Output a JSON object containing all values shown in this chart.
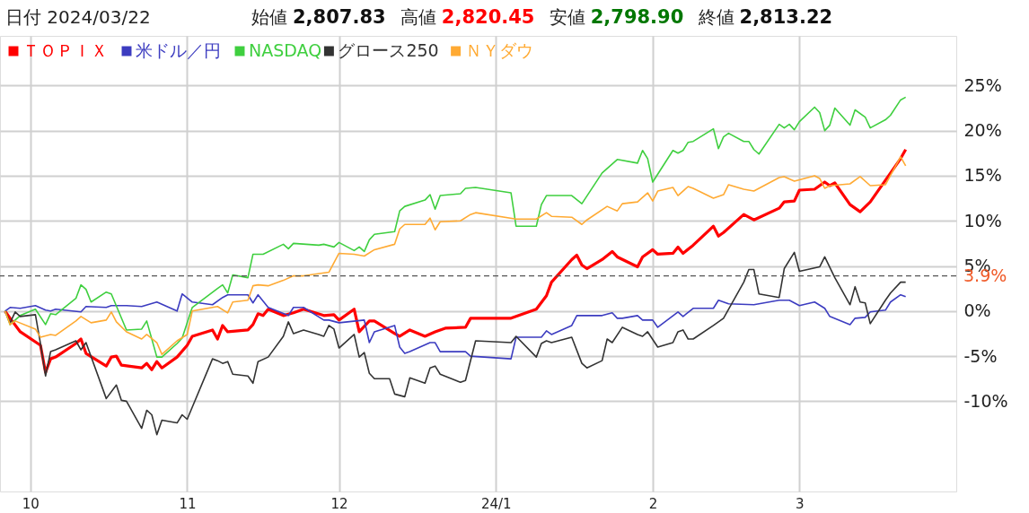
{
  "chart_data": {
    "type": "line",
    "title": "日付 2024/03/22",
    "annotations": [
      "始値 2,807.83",
      "高値 2,820.45",
      "安値 2,798.90",
      "終値 2,813.22"
    ],
    "xlim": [
      "2023-09-25",
      "2024-04-01"
    ],
    "xticks": [
      {
        "value": "2023-10-01",
        "label": "10"
      },
      {
        "value": "2023-11-01",
        "label": "11"
      },
      {
        "value": "2023-12-01",
        "label": "12"
      },
      {
        "value": "2024-01-01",
        "label": "24/1"
      },
      {
        "value": "2024-02-01",
        "label": "2"
      },
      {
        "value": "2024-03-01",
        "label": "3"
      }
    ],
    "ylim": [
      -20,
      30.5
    ],
    "yticks": [
      {
        "value": -10,
        "label": "-10%"
      },
      {
        "value": -5,
        "label": "-5%"
      },
      {
        "value": 0,
        "label": "0%"
      },
      {
        "value": 5,
        "label": "5%"
      },
      {
        "value": 10,
        "label": "10%"
      },
      {
        "value": 15,
        "label": "15%"
      },
      {
        "value": 20,
        "label": "20%"
      },
      {
        "value": 25,
        "label": "25%"
      }
    ],
    "grid": true,
    "legend": "top left",
    "marker": "none",
    "line_style": "solid",
    "ref_lines": [
      {
        "axis": "y",
        "value": 3.9,
        "label": "3.9%",
        "line_style": "dashed"
      }
    ],
    "series": [
      {
        "name": "ＴＯＰＩＸ",
        "color": "#ff0000",
        "x": [
          "2023-09-26",
          "2023-09-27",
          "2023-09-29",
          "2023-10-03",
          "2023-10-04",
          "2023-10-05",
          "2023-10-06",
          "2023-10-10",
          "2023-10-11",
          "2023-10-12",
          "2023-10-16",
          "2023-10-17",
          "2023-10-18",
          "2023-10-19",
          "2023-10-23",
          "2023-10-24",
          "2023-10-25",
          "2023-10-26",
          "2023-10-27",
          "2023-10-30",
          "2023-11-01",
          "2023-11-02",
          "2023-11-06",
          "2023-11-07",
          "2023-11-08",
          "2023-11-09",
          "2023-11-13",
          "2023-11-14",
          "2023-11-15",
          "2023-11-16",
          "2023-11-17",
          "2023-11-20",
          "2023-11-22",
          "2023-11-24",
          "2023-11-28",
          "2023-11-30",
          "2023-12-01",
          "2023-12-04",
          "2023-12-05",
          "2023-12-07",
          "2023-12-08",
          "2023-12-12",
          "2023-12-13",
          "2023-12-15",
          "2023-12-18",
          "2023-12-20",
          "2023-12-22",
          "2023-12-26",
          "2023-12-27",
          "2024-01-04",
          "2024-01-09",
          "2024-01-11",
          "2024-01-12",
          "2024-01-16",
          "2024-01-17",
          "2024-01-18",
          "2024-01-19",
          "2024-01-22",
          "2024-01-24",
          "2024-01-25",
          "2024-01-29",
          "2024-01-30",
          "2024-02-01",
          "2024-02-02",
          "2024-02-05",
          "2024-02-06",
          "2024-02-07",
          "2024-02-09",
          "2024-02-13",
          "2024-02-14",
          "2024-02-15",
          "2024-02-19",
          "2024-02-21",
          "2024-02-26",
          "2024-02-27",
          "2024-02-29",
          "2024-03-01",
          "2024-03-04",
          "2024-03-06",
          "2024-03-07",
          "2024-03-08",
          "2024-03-11",
          "2024-03-13",
          "2024-03-15",
          "2024-03-21",
          "2024-03-22"
        ],
        "values": [
          0,
          -0.8,
          -2.3,
          -3.8,
          -6.8,
          -5.3,
          -5.1,
          -3.6,
          -3.1,
          -4.7,
          -6.1,
          -5.1,
          -5.0,
          -6.0,
          -6.3,
          -5.8,
          -6.5,
          -5.6,
          -6.3,
          -5.1,
          -3.8,
          -2.8,
          -2.1,
          -3.1,
          -1.6,
          -2.3,
          -2.1,
          -1.5,
          -0.3,
          -0.5,
          0.2,
          -0.5,
          -0.2,
          0.2,
          -0.5,
          -0.4,
          -1.0,
          0.2,
          -2.3,
          -1.1,
          -1.1,
          -2.5,
          -2.8,
          -2.1,
          -2.8,
          -2.3,
          -1.9,
          -1.8,
          -0.8,
          -0.8,
          0.2,
          1.7,
          3.2,
          5.7,
          6.2,
          5.1,
          4.7,
          5.7,
          6.6,
          6.0,
          4.9,
          6.0,
          6.8,
          6.3,
          6.4,
          7.1,
          6.4,
          7.3,
          9.4,
          8.3,
          8.7,
          10.7,
          10.1,
          11.4,
          12.1,
          12.2,
          13.4,
          13.5,
          14.3,
          13.9,
          14.2,
          11.8,
          11.0,
          12.1,
          16.9,
          17.9
        ]
      },
      {
        "name": "米ドル／円",
        "color": "#3c3cc0",
        "x": [
          "2023-09-26",
          "2023-09-27",
          "2023-09-29",
          "2023-10-02",
          "2023-10-04",
          "2023-10-05",
          "2023-10-06",
          "2023-10-11",
          "2023-10-12",
          "2023-10-16",
          "2023-10-17",
          "2023-10-20",
          "2023-10-23",
          "2023-10-26",
          "2023-10-30",
          "2023-10-31",
          "2023-11-02",
          "2023-11-06",
          "2023-11-08",
          "2023-11-09",
          "2023-11-13",
          "2023-11-14",
          "2023-11-15",
          "2023-11-17",
          "2023-11-21",
          "2023-11-22",
          "2023-11-24",
          "2023-11-28",
          "2023-11-29",
          "2023-12-01",
          "2023-12-06",
          "2023-12-07",
          "2023-12-08",
          "2023-12-12",
          "2023-12-13",
          "2023-12-14",
          "2023-12-15",
          "2023-12-19",
          "2023-12-20",
          "2023-12-21",
          "2023-12-26",
          "2023-12-27",
          "2024-01-04",
          "2024-01-05",
          "2024-01-10",
          "2024-01-11",
          "2024-01-12",
          "2024-01-16",
          "2024-01-17",
          "2024-01-22",
          "2024-01-24",
          "2024-01-25",
          "2024-01-26",
          "2024-01-29",
          "2024-01-30",
          "2024-02-01",
          "2024-02-02",
          "2024-02-06",
          "2024-02-07",
          "2024-02-09",
          "2024-02-13",
          "2024-02-14",
          "2024-02-16",
          "2024-02-21",
          "2024-02-26",
          "2024-02-28",
          "2024-03-01",
          "2024-03-04",
          "2024-03-06",
          "2024-03-07",
          "2024-03-11",
          "2024-03-12",
          "2024-03-14",
          "2024-03-15",
          "2024-03-18",
          "2024-03-19",
          "2024-03-21",
          "2024-03-22"
        ],
        "values": [
          0,
          0.4,
          0.3,
          0.6,
          0.1,
          0,
          0.2,
          -0.1,
          0.5,
          0.4,
          0.6,
          0.6,
          0.5,
          1.0,
          0,
          1.9,
          1.0,
          0.7,
          1.5,
          1.8,
          1.8,
          0.9,
          1.8,
          0.4,
          -0.5,
          0.4,
          0.4,
          -1.0,
          -1.0,
          -1.3,
          -1.0,
          -3.5,
          -2.3,
          -1.6,
          -4.0,
          -4.7,
          -4.5,
          -3.5,
          -3.5,
          -4.5,
          -4.5,
          -5.0,
          -5.3,
          -2.9,
          -2.9,
          -2.2,
          -2.6,
          -1.6,
          -0.5,
          -0.5,
          -0.2,
          -0.8,
          -0.8,
          -0.5,
          -1.0,
          -1.0,
          -1.8,
          -0.1,
          -0.6,
          0.3,
          0.3,
          1.2,
          0.8,
          0.7,
          1.2,
          1.2,
          0.6,
          1.0,
          0.3,
          -0.6,
          -1.5,
          -0.8,
          -0.7,
          -0.1,
          0.1,
          1.0,
          1.8,
          1.6
        ]
      },
      {
        "name": "NASDAQ",
        "color": "#3fcf3f",
        "x": [
          "2023-09-26",
          "2023-09-27",
          "2023-09-29",
          "2023-10-02",
          "2023-10-04",
          "2023-10-05",
          "2023-10-06",
          "2023-10-10",
          "2023-10-11",
          "2023-10-12",
          "2023-10-13",
          "2023-10-16",
          "2023-10-17",
          "2023-10-20",
          "2023-10-23",
          "2023-10-24",
          "2023-10-26",
          "2023-10-27",
          "2023-10-30",
          "2023-10-31",
          "2023-11-02",
          "2023-11-07",
          "2023-11-08",
          "2023-11-09",
          "2023-11-10",
          "2023-11-13",
          "2023-11-14",
          "2023-11-16",
          "2023-11-20",
          "2023-11-21",
          "2023-11-22",
          "2023-11-27",
          "2023-11-28",
          "2023-11-30",
          "2023-12-01",
          "2023-12-04",
          "2023-12-05",
          "2023-12-06",
          "2023-12-07",
          "2023-12-08",
          "2023-12-12",
          "2023-12-13",
          "2023-12-14",
          "2023-12-18",
          "2023-12-19",
          "2023-12-20",
          "2023-12-21",
          "2023-12-25",
          "2023-12-26",
          "2023-12-28",
          "2024-01-04",
          "2024-01-05",
          "2024-01-09",
          "2024-01-10",
          "2024-01-11",
          "2024-01-16",
          "2024-01-18",
          "2024-01-22",
          "2024-01-24",
          "2024-01-25",
          "2024-01-29",
          "2024-01-30",
          "2024-01-31",
          "2024-02-01",
          "2024-02-05",
          "2024-02-06",
          "2024-02-07",
          "2024-02-08",
          "2024-02-09",
          "2024-02-13",
          "2024-02-14",
          "2024-02-15",
          "2024-02-16",
          "2024-02-19",
          "2024-02-20",
          "2024-02-21",
          "2024-02-22",
          "2024-02-26",
          "2024-02-27",
          "2024-02-28",
          "2024-02-29",
          "2024-03-01",
          "2024-03-04",
          "2024-03-05",
          "2024-03-06",
          "2024-03-07",
          "2024-03-08",
          "2024-03-11",
          "2024-03-12",
          "2024-03-14",
          "2024-03-15",
          "2024-03-18",
          "2024-03-19",
          "2024-03-21",
          "2024-03-22"
        ],
        "values": [
          0,
          -1.5,
          -0.5,
          0.2,
          -1.5,
          -0.3,
          -0.4,
          1.4,
          2.9,
          2.4,
          1.0,
          2.1,
          1.9,
          -2.1,
          -2.0,
          -1.1,
          -5.1,
          -5.1,
          -3.6,
          -3.0,
          0.4,
          2.5,
          2.9,
          2.0,
          4.0,
          3.7,
          6.3,
          6.3,
          7.4,
          6.9,
          7.5,
          7.3,
          7.4,
          7.1,
          7.6,
          6.7,
          7.1,
          6.6,
          7.9,
          8.5,
          8.8,
          11.1,
          11.6,
          12.3,
          12.9,
          11.3,
          12.8,
          13.0,
          13.6,
          13.7,
          13.1,
          9.4,
          9.4,
          11.8,
          12.8,
          12.8,
          11.9,
          15.3,
          16.3,
          16.8,
          16.4,
          17.8,
          16.9,
          14.3,
          17.8,
          17.5,
          17.8,
          18.7,
          18.8,
          20.2,
          18.0,
          19.3,
          19.7,
          18.8,
          18.8,
          17.9,
          17.4,
          20.7,
          20.3,
          20.7,
          20.1,
          21.0,
          22.6,
          22.0,
          20.0,
          20.6,
          22.5,
          20.6,
          22.3,
          21.5,
          20.3,
          21.2,
          21.7,
          23.4,
          23.7
        ]
      },
      {
        "name": "グロース250",
        "color": "#333333",
        "x": [
          "2023-09-26",
          "2023-09-27",
          "2023-09-28",
          "2023-09-29",
          "2023-10-02",
          "2023-10-03",
          "2023-10-04",
          "2023-10-05",
          "2023-10-06",
          "2023-10-10",
          "2023-10-11",
          "2023-10-12",
          "2023-10-16",
          "2023-10-18",
          "2023-10-19",
          "2023-10-20",
          "2023-10-23",
          "2023-10-24",
          "2023-10-25",
          "2023-10-26",
          "2023-10-27",
          "2023-10-30",
          "2023-10-31",
          "2023-11-01",
          "2023-11-06",
          "2023-11-07",
          "2023-11-08",
          "2023-11-09",
          "2023-11-10",
          "2023-11-13",
          "2023-11-14",
          "2023-11-15",
          "2023-11-17",
          "2023-11-20",
          "2023-11-21",
          "2023-11-22",
          "2023-11-24",
          "2023-11-27",
          "2023-11-28",
          "2023-11-29",
          "2023-11-30",
          "2023-12-01",
          "2023-12-04",
          "2023-12-05",
          "2023-12-06",
          "2023-12-07",
          "2023-12-08",
          "2023-12-11",
          "2023-12-12",
          "2023-12-14",
          "2023-12-15",
          "2023-12-18",
          "2023-12-19",
          "2023-12-20",
          "2023-12-21",
          "2023-12-25",
          "2023-12-26",
          "2023-12-28",
          "2024-01-04",
          "2024-01-05",
          "2024-01-09",
          "2024-01-10",
          "2024-01-11",
          "2024-01-12",
          "2024-01-16",
          "2024-01-18",
          "2024-01-19",
          "2024-01-22",
          "2024-01-23",
          "2024-01-24",
          "2024-01-26",
          "2024-01-29",
          "2024-01-30",
          "2024-01-31",
          "2024-02-02",
          "2024-02-05",
          "2024-02-06",
          "2024-02-07",
          "2024-02-08",
          "2024-02-09",
          "2024-02-13",
          "2024-02-15",
          "2024-02-19",
          "2024-02-20",
          "2024-02-21",
          "2024-02-22",
          "2024-02-26",
          "2024-02-27",
          "2024-02-29",
          "2024-03-01",
          "2024-03-05",
          "2024-03-06",
          "2024-03-08",
          "2024-03-11",
          "2024-03-12",
          "2024-03-13",
          "2024-03-14",
          "2024-03-15",
          "2024-03-18",
          "2024-03-19",
          "2024-03-21",
          "2024-03-22"
        ],
        "values": [
          0,
          -1.3,
          -0.1,
          -0.6,
          -0.4,
          -3.6,
          -7.2,
          -4.5,
          -4.3,
          -3.3,
          -4.3,
          -3.5,
          -9.7,
          -8.2,
          -9.9,
          -10.0,
          -13.0,
          -11.0,
          -11.5,
          -13.7,
          -12.1,
          -12.4,
          -11.5,
          -12.0,
          -5.3,
          -5.5,
          -5.8,
          -5.6,
          -7.0,
          -7.2,
          -8.0,
          -5.6,
          -5.1,
          -2.8,
          -1.2,
          -2.5,
          -2.1,
          -2.6,
          -2.8,
          -1.6,
          -2.0,
          -4.1,
          -2.6,
          -5.1,
          -4.6,
          -6.9,
          -7.5,
          -7.5,
          -9.2,
          -9.5,
          -7.4,
          -8.0,
          -6.3,
          -6.1,
          -7.0,
          -7.9,
          -7.7,
          -3.3,
          -3.5,
          -2.8,
          -5.1,
          -3.6,
          -3.3,
          -3.5,
          -2.9,
          -5.8,
          -6.3,
          -5.5,
          -3.1,
          -3.5,
          -1.8,
          -2.6,
          -2.8,
          -2.3,
          -4.0,
          -3.5,
          -2.3,
          -2.1,
          -3.1,
          -3.1,
          -1.6,
          -0.8,
          3.2,
          4.6,
          4.6,
          1.9,
          1.5,
          4.7,
          6.5,
          4.4,
          4.9,
          6.0,
          3.7,
          0.7,
          2.7,
          1.0,
          0.9,
          -1.4,
          1.2,
          2.0,
          3.2,
          3.2
        ]
      },
      {
        "name": "ＮＹダウ",
        "color": "#ffaa33",
        "x": [
          "2023-09-26",
          "2023-09-27",
          "2023-09-28",
          "2023-10-02",
          "2023-10-03",
          "2023-10-05",
          "2023-10-06",
          "2023-10-10",
          "2023-10-11",
          "2023-10-13",
          "2023-10-16",
          "2023-10-17",
          "2023-10-18",
          "2023-10-20",
          "2023-10-23",
          "2023-10-24",
          "2023-10-26",
          "2023-10-27",
          "2023-10-30",
          "2023-11-01",
          "2023-11-02",
          "2023-11-07",
          "2023-11-09",
          "2023-11-10",
          "2023-11-13",
          "2023-11-14",
          "2023-11-15",
          "2023-11-17",
          "2023-11-20",
          "2023-11-22",
          "2023-11-24",
          "2023-11-29",
          "2023-12-01",
          "2023-12-04",
          "2023-12-06",
          "2023-12-08",
          "2023-12-12",
          "2023-12-13",
          "2023-12-14",
          "2023-12-18",
          "2023-12-19",
          "2023-12-20",
          "2023-12-21",
          "2023-12-25",
          "2023-12-27",
          "2023-12-28",
          "2024-01-05",
          "2024-01-09",
          "2024-01-11",
          "2024-01-12",
          "2024-01-16",
          "2024-01-18",
          "2024-01-19",
          "2024-01-23",
          "2024-01-25",
          "2024-01-26",
          "2024-01-29",
          "2024-01-31",
          "2024-02-01",
          "2024-02-02",
          "2024-02-05",
          "2024-02-06",
          "2024-02-08",
          "2024-02-09",
          "2024-02-13",
          "2024-02-15",
          "2024-02-16",
          "2024-02-19",
          "2024-02-21",
          "2024-02-22",
          "2024-02-26",
          "2024-02-27",
          "2024-02-29",
          "2024-03-04",
          "2024-03-05",
          "2024-03-06",
          "2024-03-07",
          "2024-03-11",
          "2024-03-13",
          "2024-03-15",
          "2024-03-18",
          "2024-03-21",
          "2024-03-22"
        ],
        "values": [
          0,
          -1.5,
          -1.1,
          -2.0,
          -2.9,
          -2.6,
          -2.7,
          -1.1,
          -0.6,
          -1.3,
          -1.0,
          -0.1,
          -1.2,
          -2.3,
          -3.1,
          -2.6,
          -3.5,
          -4.8,
          -3.3,
          -2.6,
          0,
          0.5,
          -0.2,
          1.0,
          1.2,
          2.8,
          2.9,
          2.8,
          3.4,
          3.9,
          3.9,
          4.3,
          6.4,
          6.3,
          6.1,
          6.8,
          7.4,
          9.1,
          9.6,
          9.6,
          10.3,
          9.0,
          9.9,
          10.0,
          10.7,
          10.9,
          10.2,
          10.2,
          10.9,
          10.5,
          10.4,
          9.6,
          10.1,
          11.6,
          11.1,
          11.9,
          12.1,
          13.1,
          12.2,
          13.3,
          13.7,
          12.8,
          13.8,
          13.6,
          12.5,
          12.9,
          14.0,
          13.5,
          13.3,
          13.6,
          14.8,
          14.9,
          14.4,
          15.0,
          14.7,
          13.6,
          13.9,
          14.1,
          14.9,
          13.9,
          14.0,
          17.1,
          16.1
        ]
      }
    ]
  }
}
